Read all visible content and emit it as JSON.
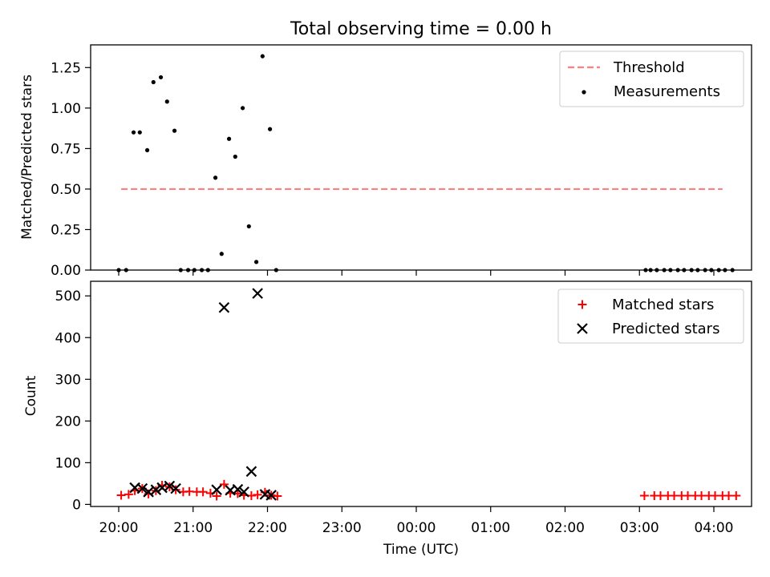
{
  "chart_data": {
    "title": "Total observing time = 0.00 h",
    "x_tick_labels": [
      "20:00",
      "21:00",
      "22:00",
      "23:00",
      "00:00",
      "01:00",
      "02:00",
      "03:00",
      "04:00"
    ],
    "xlabel": "Time (UTC)",
    "panels": [
      {
        "type": "scatter",
        "ylabel": "Matched/Predicted stars",
        "ylim": [
          0,
          1.39
        ],
        "yticks": [
          "0.00",
          "0.25",
          "0.50",
          "0.75",
          "1.00",
          "1.25"
        ],
        "legend_position": "top-right",
        "threshold": {
          "name": "Threshold",
          "color": "#ff7f7f",
          "y": 0.5,
          "x_range": [
            "20:02",
            "04:07"
          ]
        },
        "series": [
          {
            "name": "Measurements",
            "color": "#000000",
            "points": [
              [
                "20:00",
                0.0
              ],
              [
                "20:06",
                0.0
              ],
              [
                "20:12",
                0.85
              ],
              [
                "20:17",
                0.85
              ],
              [
                "20:23",
                0.74
              ],
              [
                "20:28",
                1.16
              ],
              [
                "20:34",
                1.19
              ],
              [
                "20:39",
                1.04
              ],
              [
                "20:45",
                0.86
              ],
              [
                "20:50",
                0.0
              ],
              [
                "20:56",
                0.0
              ],
              [
                "21:01",
                0.0
              ],
              [
                "21:07",
                0.0
              ],
              [
                "21:12",
                0.0
              ],
              [
                "21:18",
                0.57
              ],
              [
                "21:23",
                0.1
              ],
              [
                "21:29",
                0.81
              ],
              [
                "21:34",
                0.7
              ],
              [
                "21:40",
                1.0
              ],
              [
                "21:45",
                0.27
              ],
              [
                "21:51",
                0.05
              ],
              [
                "21:56",
                1.32
              ],
              [
                "22:02",
                0.87
              ],
              [
                "22:07",
                0.0
              ],
              [
                "03:05",
                0.0
              ],
              [
                "03:09",
                0.0
              ],
              [
                "03:14",
                0.0
              ],
              [
                "03:20",
                0.0
              ],
              [
                "03:25",
                0.0
              ],
              [
                "03:31",
                0.0
              ],
              [
                "03:36",
                0.0
              ],
              [
                "03:42",
                0.0
              ],
              [
                "03:47",
                0.0
              ],
              [
                "03:53",
                0.0
              ],
              [
                "03:58",
                0.0
              ],
              [
                "04:04",
                0.0
              ],
              [
                "04:09",
                0.0
              ],
              [
                "04:15",
                0.0
              ]
            ]
          }
        ]
      },
      {
        "type": "scatter",
        "ylabel": "Count",
        "ylim": [
          -5,
          535
        ],
        "yticks": [
          "0",
          "100",
          "200",
          "300",
          "400",
          "500"
        ],
        "legend_position": "top-right",
        "series": [
          {
            "name": "Matched stars",
            "color": "#ff0000",
            "marker": "plus",
            "points": [
              [
                "20:02",
                22
              ],
              [
                "20:08",
                24
              ],
              [
                "20:13",
                33
              ],
              [
                "20:19",
                38
              ],
              [
                "20:24",
                25
              ],
              [
                "20:30",
                33
              ],
              [
                "20:35",
                46
              ],
              [
                "20:41",
                42
              ],
              [
                "20:46",
                35
              ],
              [
                "20:52",
                30
              ],
              [
                "20:57",
                31
              ],
              [
                "21:03",
                30
              ],
              [
                "21:08",
                30
              ],
              [
                "21:14",
                27
              ],
              [
                "21:19",
                20
              ],
              [
                "21:25",
                48
              ],
              [
                "21:30",
                27
              ],
              [
                "21:36",
                26
              ],
              [
                "21:41",
                22
              ],
              [
                "21:47",
                21
              ],
              [
                "21:52",
                23
              ],
              [
                "21:58",
                29
              ],
              [
                "22:03",
                22
              ],
              [
                "22:08",
                20
              ],
              [
                "03:04",
                21
              ],
              [
                "03:12",
                21
              ],
              [
                "03:17",
                21
              ],
              [
                "03:23",
                21
              ],
              [
                "03:28",
                21
              ],
              [
                "03:34",
                21
              ],
              [
                "03:39",
                21
              ],
              [
                "03:45",
                21
              ],
              [
                "03:50",
                21
              ],
              [
                "03:56",
                21
              ],
              [
                "04:01",
                21
              ],
              [
                "04:07",
                21
              ],
              [
                "04:12",
                21
              ],
              [
                "04:18",
                21
              ]
            ]
          },
          {
            "name": "Predicted stars",
            "color": "#000000",
            "marker": "x",
            "points": [
              [
                "20:13",
                40
              ],
              [
                "20:19",
                38
              ],
              [
                "20:24",
                30
              ],
              [
                "20:30",
                35
              ],
              [
                "20:35",
                40
              ],
              [
                "20:41",
                44
              ],
              [
                "20:46",
                38
              ],
              [
                "21:19",
                35
              ],
              [
                "21:25",
                472
              ],
              [
                "21:30",
                34
              ],
              [
                "21:36",
                36
              ],
              [
                "21:41",
                30
              ],
              [
                "21:47",
                79
              ],
              [
                "21:52",
                506
              ],
              [
                "21:58",
                24
              ],
              [
                "22:03",
                22
              ]
            ]
          }
        ]
      }
    ]
  }
}
